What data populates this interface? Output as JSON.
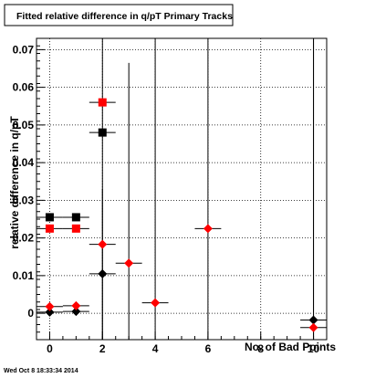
{
  "chart_data": {
    "type": "scatter",
    "title": "Fitted relative difference in q/pT Primary Tracks",
    "xlabel": "No. of Bad Points",
    "ylabel": "relative difference in q/pT",
    "xlim": [
      -0.5,
      10.5
    ],
    "ylim": [
      -0.007,
      0.073
    ],
    "x_ticks": [
      "0",
      "2",
      "4",
      "6",
      "8",
      "10"
    ],
    "y_ticks": [
      "0",
      "0.01",
      "0.02",
      "0.03",
      "0.04",
      "0.05",
      "0.06",
      "0.07"
    ],
    "grid": true,
    "timestamp": "Wed Oct  8 18:33:34 2014",
    "colors": {
      "red": "#ff0000",
      "black": "#000000"
    },
    "series": [
      {
        "marker": "square",
        "color": "black",
        "points": [
          {
            "x": 0,
            "y": 0.0255,
            "ylo": 0.0255,
            "yhi": 0.0255
          },
          {
            "x": 1,
            "y": 0.0255,
            "ylo": 0.0255,
            "yhi": 0.0255
          },
          {
            "x": 2,
            "y": 0.048,
            "ylo": 0.048,
            "yhi": 0.048
          }
        ]
      },
      {
        "marker": "square",
        "color": "red",
        "points": [
          {
            "x": 0,
            "y": 0.0225,
            "ylo": 0.0225,
            "yhi": 0.0225
          },
          {
            "x": 1,
            "y": 0.0225,
            "ylo": 0.0225,
            "yhi": 0.0225
          },
          {
            "x": 2,
            "y": 0.056,
            "ylo": 0.056,
            "yhi": 0.056
          }
        ]
      },
      {
        "marker": "diamond",
        "color": "black",
        "points": [
          {
            "x": 0,
            "y": 0.0003,
            "ylo": 0.0003,
            "yhi": 0.0003
          },
          {
            "x": 1,
            "y": 0.0005,
            "ylo": 0.0005,
            "yhi": 0.0005
          },
          {
            "x": 2,
            "y": 0.0105,
            "ylo": -0.007,
            "yhi": 0.033
          },
          {
            "x": 10,
            "y": -0.0018,
            "ylo": -0.007,
            "yhi": 0.073
          }
        ]
      },
      {
        "marker": "diamond",
        "color": "red",
        "points": [
          {
            "x": 0,
            "y": 0.0018,
            "ylo": 0.0018,
            "yhi": 0.0018
          },
          {
            "x": 1,
            "y": 0.002,
            "ylo": 0.002,
            "yhi": 0.002
          },
          {
            "x": 2,
            "y": 0.0183,
            "ylo": -0.007,
            "yhi": 0.073
          },
          {
            "x": 3,
            "y": 0.0133,
            "ylo": -0.007,
            "yhi": 0.0665
          },
          {
            "x": 4,
            "y": 0.0028,
            "ylo": -0.007,
            "yhi": 0.073
          },
          {
            "x": 6,
            "y": 0.0225,
            "ylo": -0.007,
            "yhi": 0.073
          },
          {
            "x": 10,
            "y": -0.0038,
            "ylo": -0.007,
            "yhi": 0.073
          }
        ]
      }
    ]
  }
}
